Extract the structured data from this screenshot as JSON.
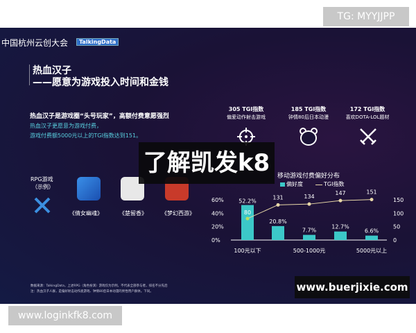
{
  "header": {
    "brand": "中国杭州云创大会",
    "logo": "TalkingData"
  },
  "title": {
    "line1": "热血汉子",
    "line2": "——愿意为游戏投入时间和金钱"
  },
  "intro": {
    "line1": "热血汉子是游戏圈“头号玩家”，高额付费意愿强烈",
    "line2": "热血汉子更愿意为游戏付费，",
    "line3": "游戏付费额5000元以上的TGI指数达到151。"
  },
  "traits": [
    {
      "tgi": "305 TGI指数",
      "desc": "偏爱动作射击游戏",
      "icon": "crosshair-icon"
    },
    {
      "tgi": "185 TGI指数",
      "desc": "钟情80后日本动漫",
      "icon": "bear-icon"
    },
    {
      "tgi": "172 TGI指数",
      "desc": "喜欢DOTA-LOL题材",
      "icon": "crossed-swords-icon"
    }
  ],
  "rpg": {
    "label1": "RPG游戏",
    "label2": "（示例）",
    "games": [
      "《倩女幽魂》",
      "《楚留香》",
      "《梦幻西游》"
    ]
  },
  "footnote": {
    "line1": "数据来源：TalkingData，上述RPG（角色扮演）游戏仅为示例，不代表全部参与者，排名不分先后",
    "line2": "注：热血汉子人群，是偏好射击动作类游戏、钟情80后日本动漫的男性用户群体。下同。"
  },
  "chart_data": {
    "type": "bar+line",
    "title": "移动游戏付费偏好分布",
    "categories": [
      "100元以下",
      "",
      "500-1000元",
      "",
      "5000元以上"
    ],
    "series": [
      {
        "name": "偏好度",
        "type": "bar",
        "axis": "left",
        "values": [
          52.2,
          20.8,
          7.7,
          12.7,
          6.6
        ],
        "labels": [
          "52.2%",
          "20.8%",
          "7.7%",
          "12.7%",
          "6.6%"
        ],
        "color": "#3cc8c8"
      },
      {
        "name": "TGI指数",
        "type": "line",
        "axis": "right",
        "values": [
          80,
          131,
          134,
          147,
          151
        ],
        "labels": [
          "80",
          "131",
          "134",
          "147",
          "151"
        ],
        "color": "#e8d8a8"
      }
    ],
    "left_ticks": [
      "60%",
      "40%",
      "20%",
      "0%"
    ],
    "ylim_left": [
      0,
      60
    ],
    "right_ticks": [
      "150",
      "100",
      "50",
      "0"
    ],
    "ylim_right": [
      0,
      150
    ],
    "legend": "top"
  },
  "overlays": {
    "tg": "TG: MYYJJPP",
    "site": "www.loginkfk8.com",
    "banner": "了解凯发k8",
    "watermark": "www.buerjixie.com"
  }
}
